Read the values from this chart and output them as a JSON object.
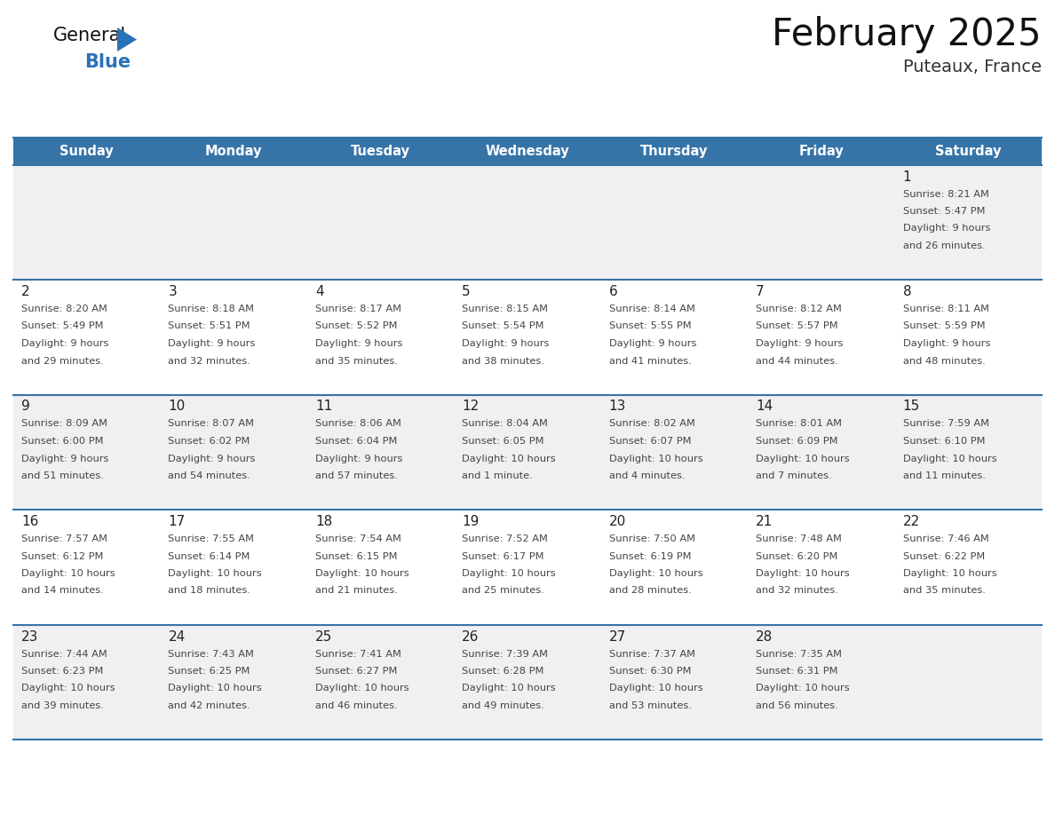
{
  "title": "February 2025",
  "subtitle": "Puteaux, France",
  "header_bg": "#3674a8",
  "header_text": "#ffffff",
  "days_of_week": [
    "Sunday",
    "Monday",
    "Tuesday",
    "Wednesday",
    "Thursday",
    "Friday",
    "Saturday"
  ],
  "row_odd_bg": "#f0f0f0",
  "row_even_bg": "#ffffff",
  "separator_color": "#3674a8",
  "day_num_color": "#222222",
  "info_color": "#444444",
  "logo_general_color": "#111111",
  "logo_blue_color": "#2a72b8",
  "logo_triangle_color": "#2a72b8",
  "calendar_data": [
    [
      null,
      null,
      null,
      null,
      null,
      null,
      {
        "day": 1,
        "sunrise": "8:21 AM",
        "sunset": "5:47 PM",
        "daylight": "9 hours",
        "daylight2": "and 26 minutes."
      }
    ],
    [
      {
        "day": 2,
        "sunrise": "8:20 AM",
        "sunset": "5:49 PM",
        "daylight": "9 hours",
        "daylight2": "and 29 minutes."
      },
      {
        "day": 3,
        "sunrise": "8:18 AM",
        "sunset": "5:51 PM",
        "daylight": "9 hours",
        "daylight2": "and 32 minutes."
      },
      {
        "day": 4,
        "sunrise": "8:17 AM",
        "sunset": "5:52 PM",
        "daylight": "9 hours",
        "daylight2": "and 35 minutes."
      },
      {
        "day": 5,
        "sunrise": "8:15 AM",
        "sunset": "5:54 PM",
        "daylight": "9 hours",
        "daylight2": "and 38 minutes."
      },
      {
        "day": 6,
        "sunrise": "8:14 AM",
        "sunset": "5:55 PM",
        "daylight": "9 hours",
        "daylight2": "and 41 minutes."
      },
      {
        "day": 7,
        "sunrise": "8:12 AM",
        "sunset": "5:57 PM",
        "daylight": "9 hours",
        "daylight2": "and 44 minutes."
      },
      {
        "day": 8,
        "sunrise": "8:11 AM",
        "sunset": "5:59 PM",
        "daylight": "9 hours",
        "daylight2": "and 48 minutes."
      }
    ],
    [
      {
        "day": 9,
        "sunrise": "8:09 AM",
        "sunset": "6:00 PM",
        "daylight": "9 hours",
        "daylight2": "and 51 minutes."
      },
      {
        "day": 10,
        "sunrise": "8:07 AM",
        "sunset": "6:02 PM",
        "daylight": "9 hours",
        "daylight2": "and 54 minutes."
      },
      {
        "day": 11,
        "sunrise": "8:06 AM",
        "sunset": "6:04 PM",
        "daylight": "9 hours",
        "daylight2": "and 57 minutes."
      },
      {
        "day": 12,
        "sunrise": "8:04 AM",
        "sunset": "6:05 PM",
        "daylight": "10 hours",
        "daylight2": "and 1 minute."
      },
      {
        "day": 13,
        "sunrise": "8:02 AM",
        "sunset": "6:07 PM",
        "daylight": "10 hours",
        "daylight2": "and 4 minutes."
      },
      {
        "day": 14,
        "sunrise": "8:01 AM",
        "sunset": "6:09 PM",
        "daylight": "10 hours",
        "daylight2": "and 7 minutes."
      },
      {
        "day": 15,
        "sunrise": "7:59 AM",
        "sunset": "6:10 PM",
        "daylight": "10 hours",
        "daylight2": "and 11 minutes."
      }
    ],
    [
      {
        "day": 16,
        "sunrise": "7:57 AM",
        "sunset": "6:12 PM",
        "daylight": "10 hours",
        "daylight2": "and 14 minutes."
      },
      {
        "day": 17,
        "sunrise": "7:55 AM",
        "sunset": "6:14 PM",
        "daylight": "10 hours",
        "daylight2": "and 18 minutes."
      },
      {
        "day": 18,
        "sunrise": "7:54 AM",
        "sunset": "6:15 PM",
        "daylight": "10 hours",
        "daylight2": "and 21 minutes."
      },
      {
        "day": 19,
        "sunrise": "7:52 AM",
        "sunset": "6:17 PM",
        "daylight": "10 hours",
        "daylight2": "and 25 minutes."
      },
      {
        "day": 20,
        "sunrise": "7:50 AM",
        "sunset": "6:19 PM",
        "daylight": "10 hours",
        "daylight2": "and 28 minutes."
      },
      {
        "day": 21,
        "sunrise": "7:48 AM",
        "sunset": "6:20 PM",
        "daylight": "10 hours",
        "daylight2": "and 32 minutes."
      },
      {
        "day": 22,
        "sunrise": "7:46 AM",
        "sunset": "6:22 PM",
        "daylight": "10 hours",
        "daylight2": "and 35 minutes."
      }
    ],
    [
      {
        "day": 23,
        "sunrise": "7:44 AM",
        "sunset": "6:23 PM",
        "daylight": "10 hours",
        "daylight2": "and 39 minutes."
      },
      {
        "day": 24,
        "sunrise": "7:43 AM",
        "sunset": "6:25 PM",
        "daylight": "10 hours",
        "daylight2": "and 42 minutes."
      },
      {
        "day": 25,
        "sunrise": "7:41 AM",
        "sunset": "6:27 PM",
        "daylight": "10 hours",
        "daylight2": "and 46 minutes."
      },
      {
        "day": 26,
        "sunrise": "7:39 AM",
        "sunset": "6:28 PM",
        "daylight": "10 hours",
        "daylight2": "and 49 minutes."
      },
      {
        "day": 27,
        "sunrise": "7:37 AM",
        "sunset": "6:30 PM",
        "daylight": "10 hours",
        "daylight2": "and 53 minutes."
      },
      {
        "day": 28,
        "sunrise": "7:35 AM",
        "sunset": "6:31 PM",
        "daylight": "10 hours",
        "daylight2": "and 56 minutes."
      },
      null
    ]
  ]
}
